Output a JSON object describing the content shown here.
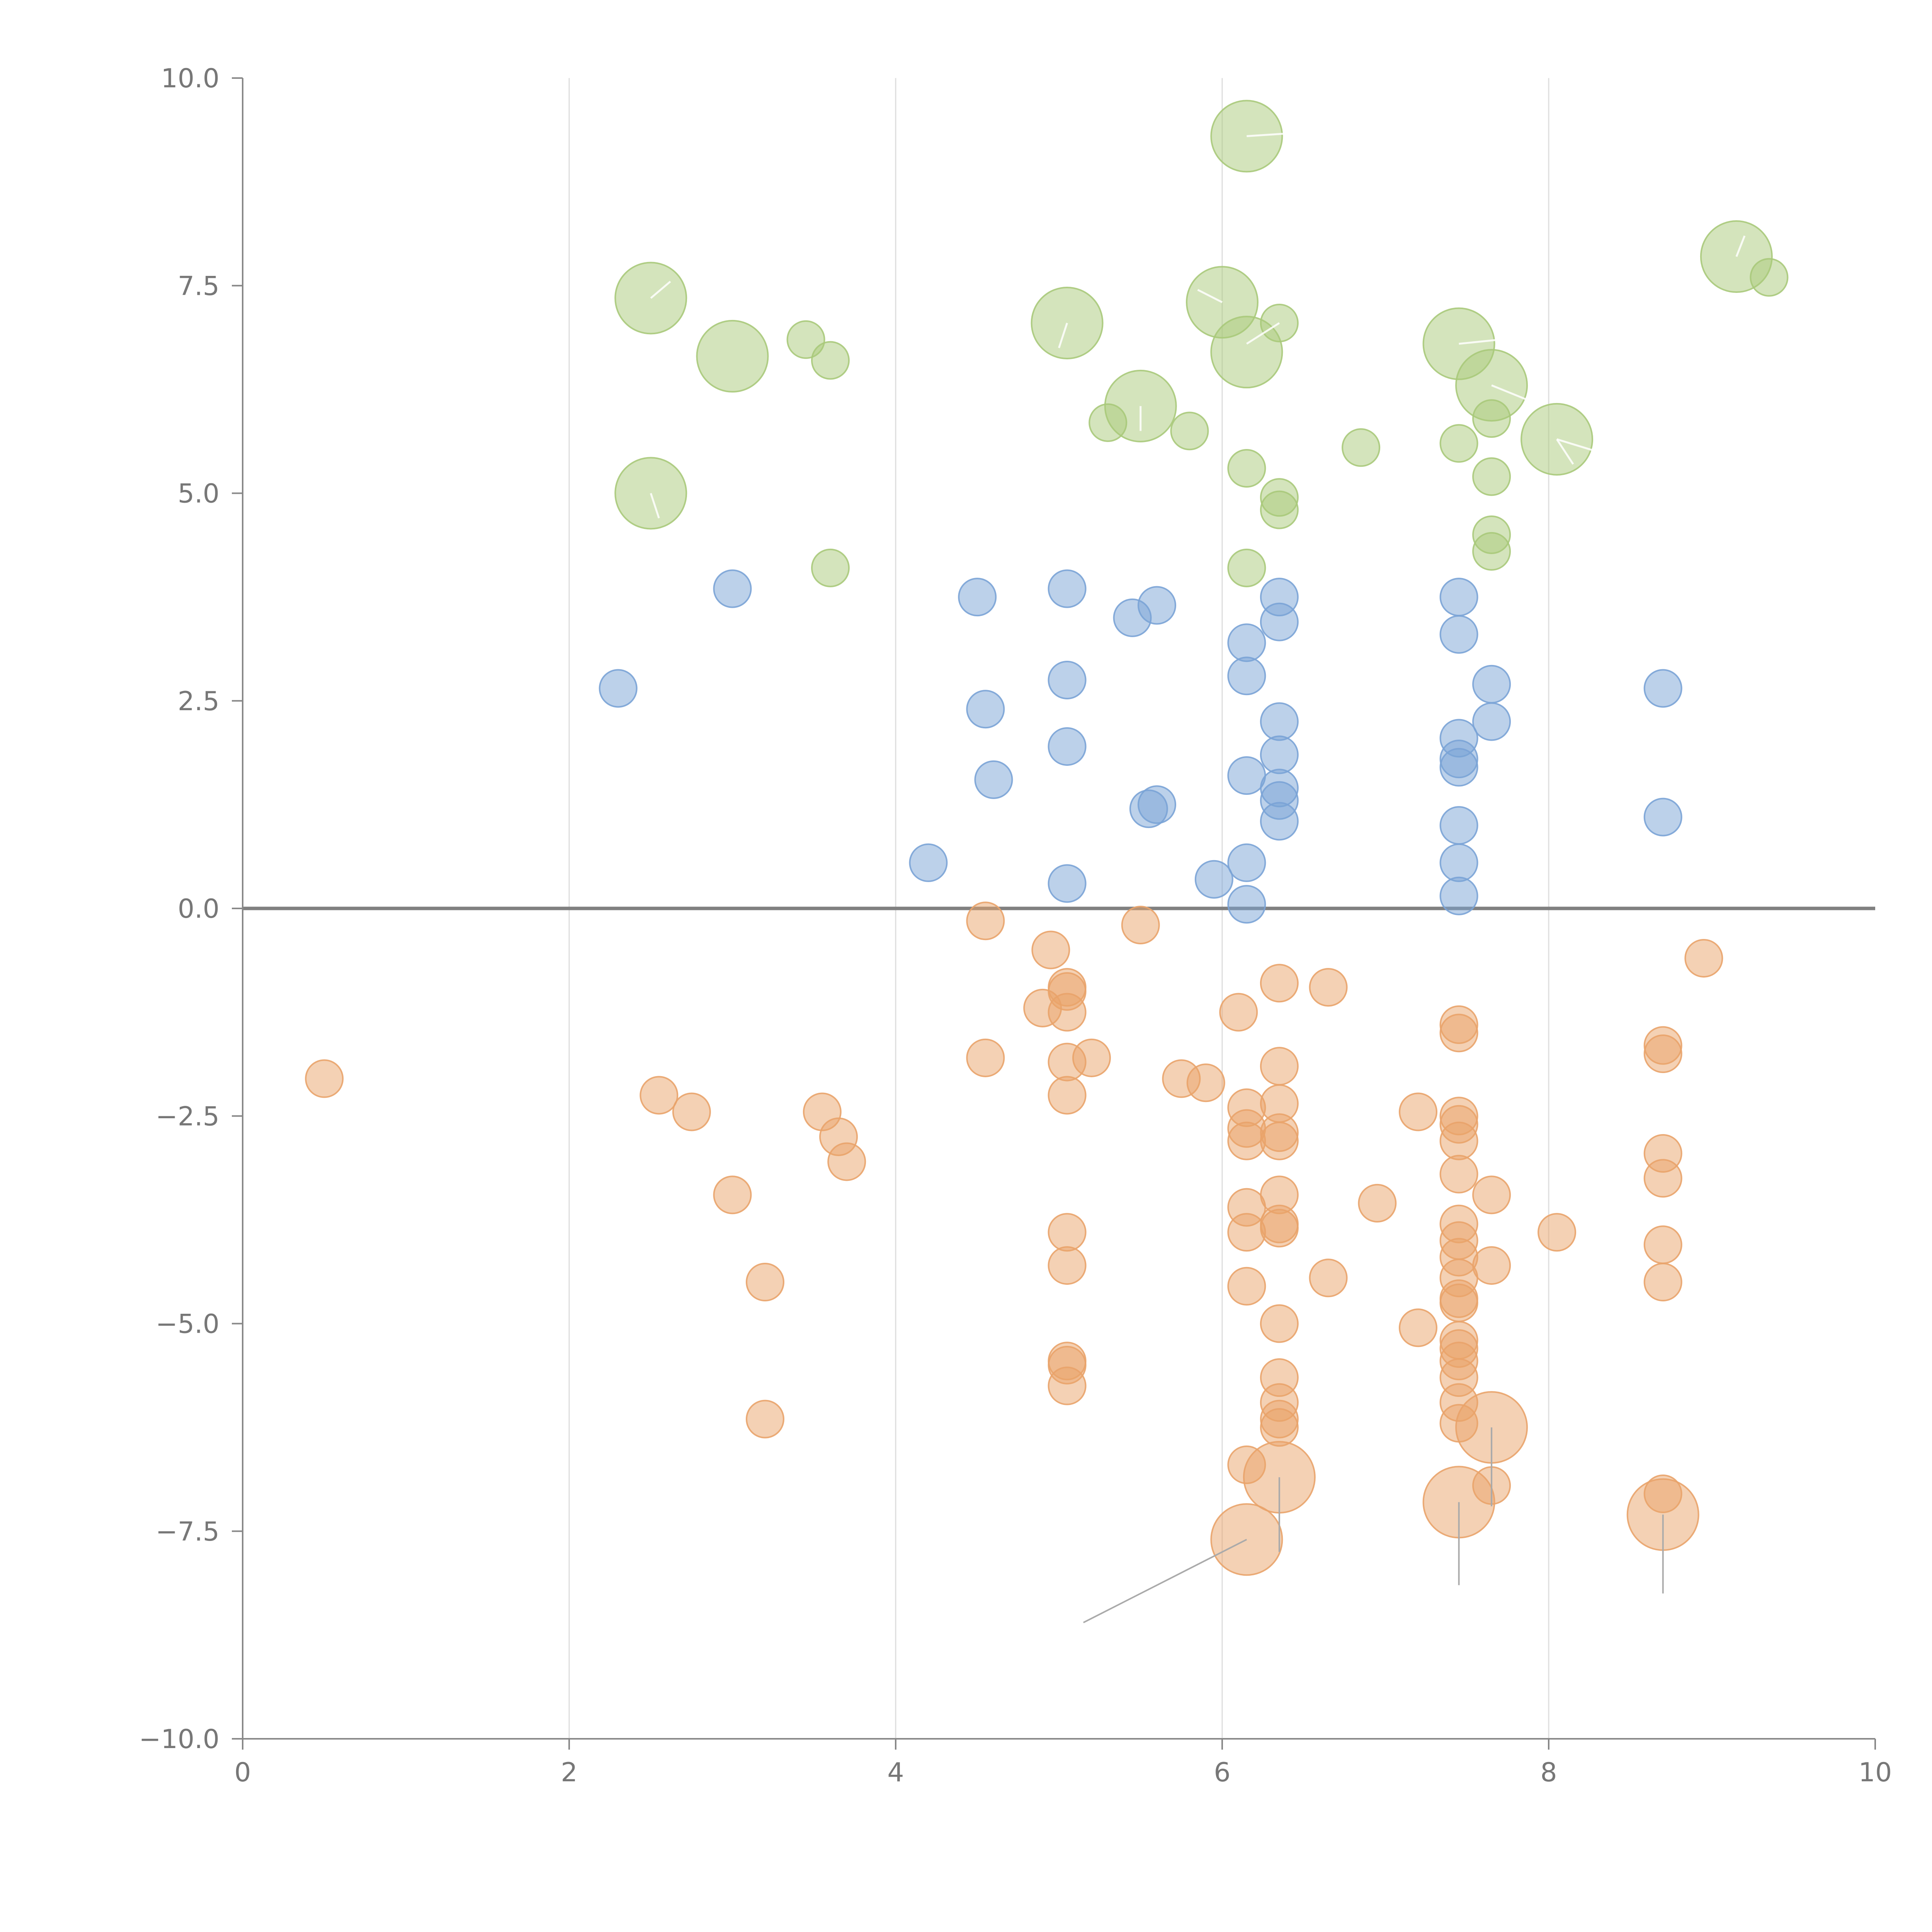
{
  "chart_data": {
    "type": "scatter",
    "title": "",
    "xlabel": "",
    "ylabel": "",
    "xlim": [
      0,
      10
    ],
    "ylim": [
      -10,
      10
    ],
    "x_ticks": [
      "0",
      "2",
      "4",
      "6",
      "8",
      "10"
    ],
    "y_ticks": [
      "10.0",
      "7.5",
      "5.0",
      "2.5",
      "0.0",
      "−2.5",
      "−5.0",
      "−7.5",
      "−10.0"
    ],
    "grid": "vertical lines at x = 2, 4, 6, 8",
    "reference_line": 0,
    "colors": {
      "green": "#a9c97a",
      "blue": "#7aa3d6",
      "orange": "#e9a36a"
    },
    "series": [
      {
        "name": "green",
        "color": "#a9c97a",
        "points": [
          [
            6.15,
            9.3,
            "L"
          ],
          [
            2.5,
            7.35,
            "L"
          ],
          [
            6.0,
            7.3,
            "L"
          ],
          [
            5.05,
            7.05,
            "L"
          ],
          [
            6.35,
            7.05,
            "S"
          ],
          [
            3.45,
            6.85,
            "S"
          ],
          [
            7.45,
            6.8,
            "L"
          ],
          [
            6.15,
            6.7,
            "L"
          ],
          [
            3.0,
            6.65,
            "L"
          ],
          [
            3.6,
            6.6,
            "S"
          ],
          [
            7.65,
            6.3,
            "L"
          ],
          [
            5.5,
            6.05,
            "L"
          ],
          [
            7.65,
            5.9,
            "S"
          ],
          [
            5.3,
            5.85,
            "S"
          ],
          [
            5.8,
            5.75,
            "S"
          ],
          [
            8.05,
            5.65,
            "L"
          ],
          [
            6.85,
            5.55,
            "S"
          ],
          [
            7.45,
            5.6,
            "S"
          ],
          [
            6.15,
            5.3,
            "S"
          ],
          [
            7.65,
            5.2,
            "S"
          ],
          [
            2.5,
            5.0,
            "L"
          ],
          [
            6.35,
            4.95,
            "S"
          ],
          [
            6.35,
            4.8,
            "S"
          ],
          [
            7.65,
            4.5,
            "S"
          ],
          [
            7.65,
            4.3,
            "S"
          ],
          [
            3.6,
            4.1,
            "S"
          ],
          [
            6.15,
            4.1,
            "S"
          ],
          [
            9.15,
            7.85,
            "L"
          ],
          [
            9.35,
            7.6,
            "S"
          ]
        ]
      },
      {
        "name": "blue",
        "color": "#7aa3d6",
        "points": [
          [
            3.0,
            3.85,
            "S"
          ],
          [
            5.05,
            3.85,
            "S"
          ],
          [
            4.5,
            3.75,
            "S"
          ],
          [
            6.35,
            3.75,
            "S"
          ],
          [
            7.45,
            3.75,
            "S"
          ],
          [
            5.6,
            3.65,
            "S"
          ],
          [
            5.45,
            3.5,
            "S"
          ],
          [
            6.35,
            3.45,
            "S"
          ],
          [
            7.45,
            3.3,
            "S"
          ],
          [
            6.15,
            3.2,
            "S"
          ],
          [
            6.15,
            2.8,
            "S"
          ],
          [
            5.05,
            2.75,
            "S"
          ],
          [
            7.65,
            2.7,
            "S"
          ],
          [
            2.3,
            2.65,
            "S"
          ],
          [
            8.7,
            2.65,
            "S"
          ],
          [
            4.55,
            2.4,
            "S"
          ],
          [
            7.65,
            2.25,
            "S"
          ],
          [
            6.35,
            2.25,
            "S"
          ],
          [
            7.45,
            2.05,
            "S"
          ],
          [
            5.05,
            1.95,
            "S"
          ],
          [
            6.35,
            1.85,
            "S"
          ],
          [
            7.45,
            1.8,
            "S"
          ],
          [
            7.45,
            1.7,
            "S"
          ],
          [
            6.15,
            1.6,
            "S"
          ],
          [
            4.6,
            1.55,
            "S"
          ],
          [
            6.35,
            1.45,
            "S"
          ],
          [
            6.35,
            1.3,
            "S"
          ],
          [
            5.6,
            1.25,
            "S"
          ],
          [
            5.55,
            1.2,
            "S"
          ],
          [
            8.7,
            1.1,
            "S"
          ],
          [
            6.35,
            1.05,
            "S"
          ],
          [
            7.45,
            1.0,
            "S"
          ],
          [
            4.2,
            0.55,
            "S"
          ],
          [
            6.15,
            0.55,
            "S"
          ],
          [
            7.45,
            0.55,
            "S"
          ],
          [
            5.95,
            0.35,
            "S"
          ],
          [
            5.05,
            0.3,
            "S"
          ],
          [
            7.45,
            0.15,
            "S"
          ],
          [
            6.15,
            0.05,
            "S"
          ]
        ]
      },
      {
        "name": "orange",
        "color": "#e9a36a",
        "points": [
          [
            4.55,
            -0.15,
            "S"
          ],
          [
            5.5,
            -0.2,
            "S"
          ],
          [
            8.95,
            -0.6,
            "S"
          ],
          [
            4.95,
            -0.5,
            "S"
          ],
          [
            6.35,
            -0.9,
            "S"
          ],
          [
            6.65,
            -0.95,
            "S"
          ],
          [
            5.05,
            -0.95,
            "S"
          ],
          [
            5.05,
            -1.0,
            "S"
          ],
          [
            4.9,
            -1.2,
            "S"
          ],
          [
            5.05,
            -1.25,
            "S"
          ],
          [
            6.1,
            -1.25,
            "S"
          ],
          [
            7.45,
            -1.4,
            "S"
          ],
          [
            7.45,
            -1.5,
            "S"
          ],
          [
            8.7,
            -1.65,
            "S"
          ],
          [
            8.7,
            -1.75,
            "S"
          ],
          [
            4.55,
            -1.8,
            "S"
          ],
          [
            5.2,
            -1.8,
            "S"
          ],
          [
            5.05,
            -1.85,
            "S"
          ],
          [
            6.35,
            -1.9,
            "S"
          ],
          [
            5.75,
            -2.05,
            "S"
          ],
          [
            5.9,
            -2.1,
            "S"
          ],
          [
            0.5,
            -2.05,
            "S"
          ],
          [
            2.55,
            -2.25,
            "S"
          ],
          [
            5.05,
            -2.25,
            "S"
          ],
          [
            6.15,
            -2.4,
            "S"
          ],
          [
            6.35,
            -2.35,
            "S"
          ],
          [
            2.75,
            -2.45,
            "S"
          ],
          [
            3.55,
            -2.45,
            "S"
          ],
          [
            7.2,
            -2.45,
            "S"
          ],
          [
            7.45,
            -2.5,
            "S"
          ],
          [
            7.45,
            -2.6,
            "S"
          ],
          [
            6.15,
            -2.65,
            "S"
          ],
          [
            6.35,
            -2.7,
            "S"
          ],
          [
            3.65,
            -2.75,
            "S"
          ],
          [
            6.15,
            -2.8,
            "S"
          ],
          [
            6.35,
            -2.8,
            "S"
          ],
          [
            7.45,
            -2.8,
            "S"
          ],
          [
            8.7,
            -2.95,
            "S"
          ],
          [
            3.7,
            -3.05,
            "S"
          ],
          [
            7.45,
            -3.2,
            "S"
          ],
          [
            8.7,
            -3.25,
            "S"
          ],
          [
            3.0,
            -3.45,
            "S"
          ],
          [
            6.35,
            -3.45,
            "S"
          ],
          [
            7.65,
            -3.45,
            "S"
          ],
          [
            6.95,
            -3.55,
            "S"
          ],
          [
            6.15,
            -3.6,
            "S"
          ],
          [
            6.35,
            -3.8,
            "S"
          ],
          [
            6.35,
            -3.85,
            "S"
          ],
          [
            7.45,
            -3.8,
            "S"
          ],
          [
            5.05,
            -3.9,
            "S"
          ],
          [
            6.15,
            -3.9,
            "S"
          ],
          [
            8.05,
            -3.9,
            "S"
          ],
          [
            7.45,
            -4.0,
            "S"
          ],
          [
            8.7,
            -4.05,
            "S"
          ],
          [
            7.45,
            -4.2,
            "S"
          ],
          [
            7.65,
            -4.3,
            "S"
          ],
          [
            5.05,
            -4.3,
            "S"
          ],
          [
            7.45,
            -4.45,
            "S"
          ],
          [
            6.65,
            -4.45,
            "S"
          ],
          [
            3.2,
            -4.5,
            "S"
          ],
          [
            8.7,
            -4.5,
            "S"
          ],
          [
            6.15,
            -4.55,
            "S"
          ],
          [
            7.45,
            -4.7,
            "S"
          ],
          [
            7.45,
            -4.75,
            "S"
          ],
          [
            6.35,
            -5.0,
            "S"
          ],
          [
            7.2,
            -5.05,
            "S"
          ],
          [
            7.45,
            -5.2,
            "S"
          ],
          [
            7.45,
            -5.3,
            "S"
          ],
          [
            7.45,
            -5.45,
            "S"
          ],
          [
            5.05,
            -5.45,
            "S"
          ],
          [
            5.05,
            -5.5,
            "S"
          ],
          [
            7.45,
            -5.65,
            "S"
          ],
          [
            6.35,
            -5.65,
            "S"
          ],
          [
            5.05,
            -5.75,
            "S"
          ],
          [
            7.45,
            -5.95,
            "S"
          ],
          [
            6.35,
            -5.95,
            "S"
          ],
          [
            3.2,
            -6.15,
            "S"
          ],
          [
            6.35,
            -6.15,
            "S"
          ],
          [
            6.35,
            -6.25,
            "S"
          ],
          [
            7.45,
            -6.2,
            "S"
          ],
          [
            7.65,
            -6.25,
            "L"
          ],
          [
            6.15,
            -6.7,
            "S"
          ],
          [
            6.35,
            -6.85,
            "L"
          ],
          [
            7.65,
            -6.95,
            "S"
          ],
          [
            7.45,
            -7.15,
            "L"
          ],
          [
            8.7,
            -7.05,
            "S"
          ],
          [
            8.7,
            -7.3,
            "L"
          ],
          [
            6.15,
            -7.6,
            "L"
          ]
        ]
      }
    ]
  }
}
